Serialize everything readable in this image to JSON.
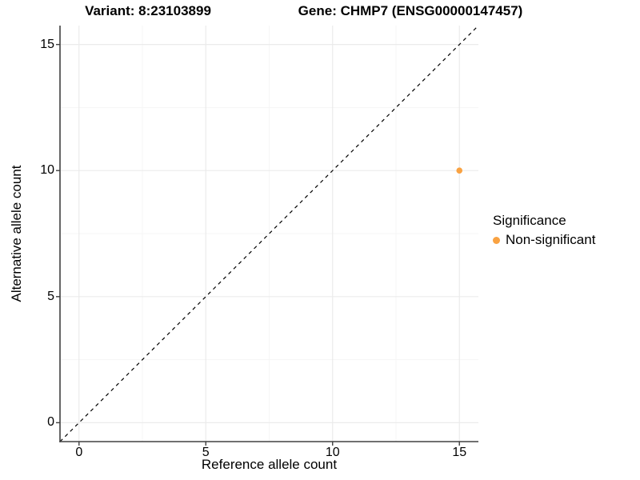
{
  "chart_data": {
    "type": "scatter",
    "titles": {
      "variant": "Variant: 8:23103899",
      "gene": "Gene: CHMP7 (ENSG00000147457)"
    },
    "xlabel": "Reference allele count",
    "ylabel": "Alternative allele count",
    "xlim": [
      -0.75,
      15.75
    ],
    "ylim": [
      -0.75,
      15.75
    ],
    "xticks": [
      0,
      5,
      10,
      15
    ],
    "yticks": [
      0,
      5,
      10,
      15
    ],
    "x_minor_ticks": [
      2.5,
      7.5,
      12.5
    ],
    "y_minor_ticks": [
      2.5,
      7.5,
      12.5
    ],
    "grid": "major+minor",
    "points": [
      {
        "x": 15,
        "y": 10,
        "series": "Non-significant"
      }
    ],
    "reference_line": {
      "type": "identity",
      "style": "dashed",
      "color": "#000000"
    },
    "legend": {
      "title": "Significance",
      "position": "right",
      "items": [
        {
          "label": "Non-significant",
          "color": "#F9A242"
        }
      ]
    },
    "colors": {
      "point": "#F9A242",
      "grid_major": "#EBEBEB",
      "grid_minor": "#F5F5F5",
      "axis_line": "#404040",
      "tick_mark": "#404040",
      "text": "#000000",
      "background": "#FFFFFF"
    }
  }
}
